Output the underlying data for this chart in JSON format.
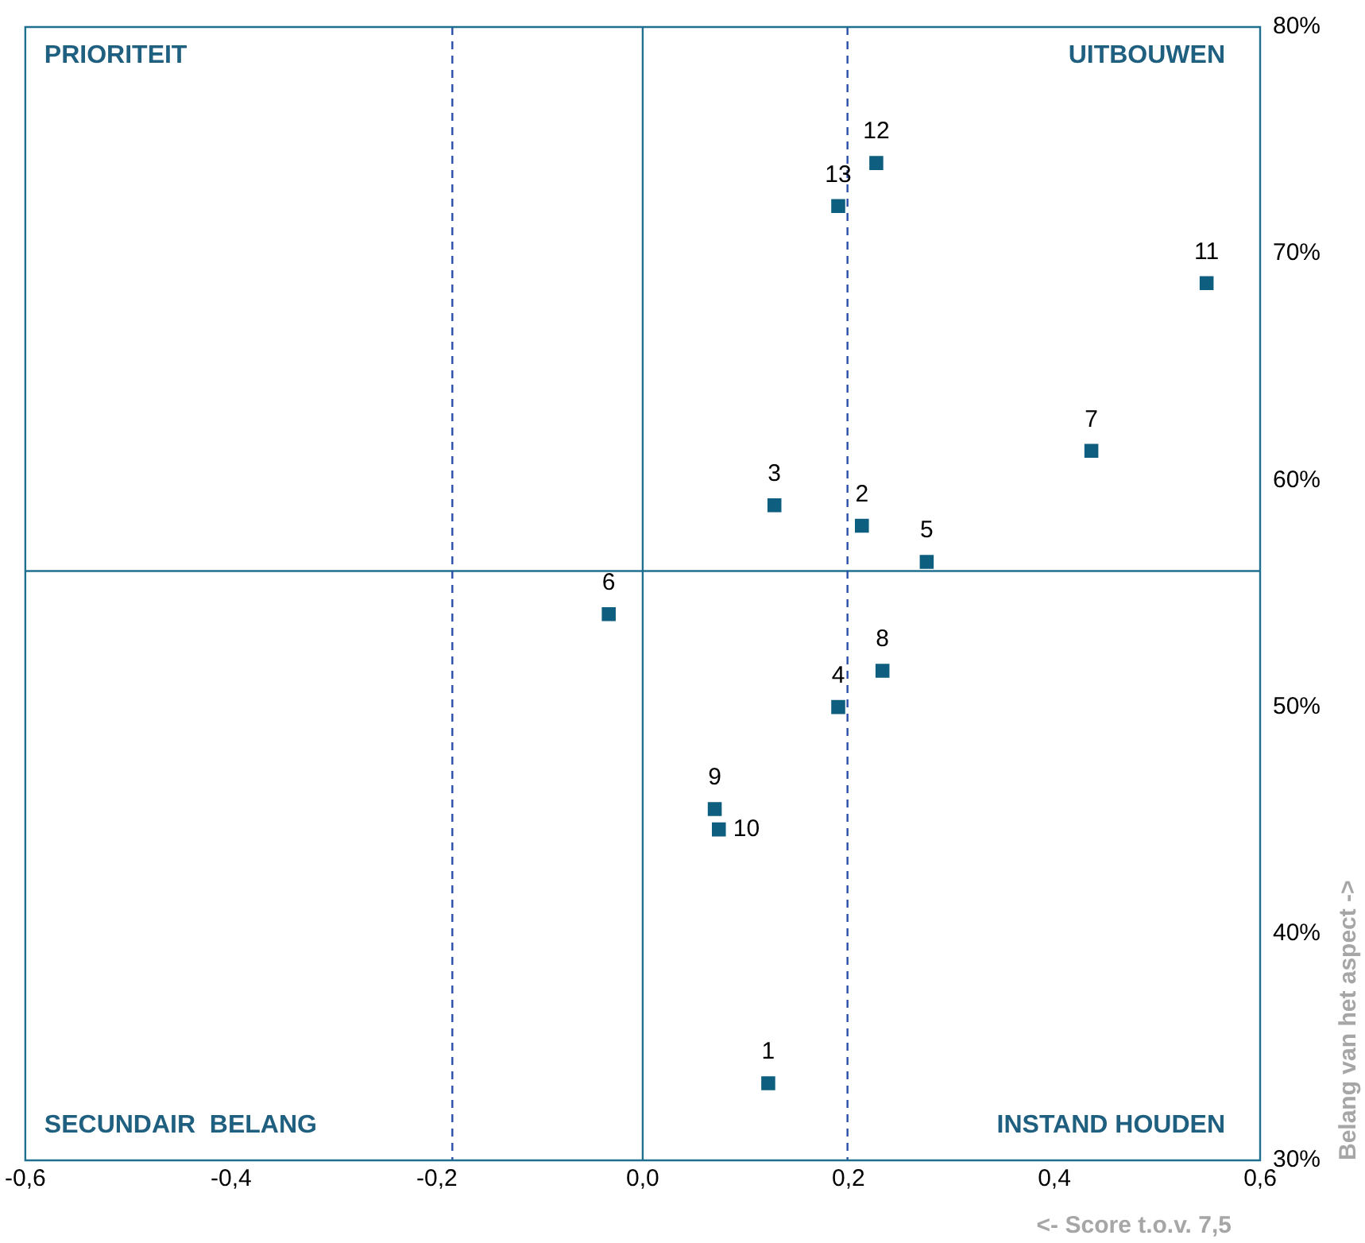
{
  "chart_data": {
    "type": "scatter",
    "xlabel": "<- Score t.o.v. 7,5",
    "ylabel": "Belang van het aspect ->",
    "series": [
      {
        "color": "#0e5f7f",
        "x": [
          0.122,
          0.213,
          0.128,
          0.19,
          0.276,
          -0.033,
          0.436,
          0.233,
          0.07,
          0.074,
          0.548,
          0.227,
          0.19
        ],
        "values": [
          33.4,
          58.0,
          58.9,
          50.0,
          56.4,
          54.1,
          61.3,
          51.6,
          45.5,
          44.6,
          68.7,
          74.0,
          72.1
        ]
      }
    ],
    "xlim": [
      -0.6,
      0.6
    ],
    "ylim": [
      30,
      80
    ],
    "xticks": [
      {
        "value": -0.6,
        "label": "-0,6"
      },
      {
        "value": -0.4,
        "label": "-0,4"
      },
      {
        "value": -0.2,
        "label": "-0,2"
      },
      {
        "value": 0,
        "label": "0,0"
      },
      {
        "value": 0.2,
        "label": "0,2"
      },
      {
        "value": 0.4,
        "label": "0,4"
      },
      {
        "value": 0.6,
        "label": "0,6"
      }
    ],
    "yticks": [
      {
        "value": 30,
        "label": "30%"
      },
      {
        "value": 40,
        "label": "40%"
      },
      {
        "value": 50,
        "label": "50%"
      },
      {
        "value": 60,
        "label": "60%"
      },
      {
        "value": 70,
        "label": "70%"
      },
      {
        "value": 80,
        "label": "80%"
      }
    ],
    "ref_lines": [
      {
        "axis": "x",
        "value": 0,
        "color": "#1f6f8f",
        "line_style": "solid"
      },
      {
        "axis": "y",
        "value": 56,
        "color": "#1f6f8f",
        "line_style": "solid"
      },
      {
        "axis": "x",
        "value": -0.185,
        "color": "#2a4fa8",
        "line_style": "dashed"
      },
      {
        "axis": "x",
        "value": 0.199,
        "color": "#2a4fa8",
        "line_style": "dashed"
      }
    ],
    "annotations": [
      "PRIORITEIT",
      "UITBOUWEN",
      "SECUNDAIR  BELANG",
      "INSTAND HOUDEN",
      {
        "text": "1",
        "x": 0.122,
        "y": 33.4
      },
      {
        "text": "2",
        "x": 0.213,
        "y": 58.0
      },
      {
        "text": "3",
        "x": 0.128,
        "y": 58.9
      },
      {
        "text": "4",
        "x": 0.19,
        "y": 50.0
      },
      {
        "text": "5",
        "x": 0.276,
        "y": 56.4
      },
      {
        "text": "6",
        "x": -0.033,
        "y": 54.1
      },
      {
        "text": "7",
        "x": 0.436,
        "y": 61.3
      },
      {
        "text": "8",
        "x": 0.233,
        "y": 51.6
      },
      {
        "text": "9",
        "x": 0.07,
        "y": 45.5
      },
      {
        "text": "10",
        "x": 0.074,
        "y": 44.6
      },
      {
        "text": "11",
        "x": 0.548,
        "y": 68.7
      },
      {
        "text": "12",
        "x": 0.227,
        "y": 74.0
      },
      {
        "text": "13",
        "x": 0.19,
        "y": 72.1
      }
    ],
    "grid": false,
    "legend": false,
    "marker": "square"
  }
}
